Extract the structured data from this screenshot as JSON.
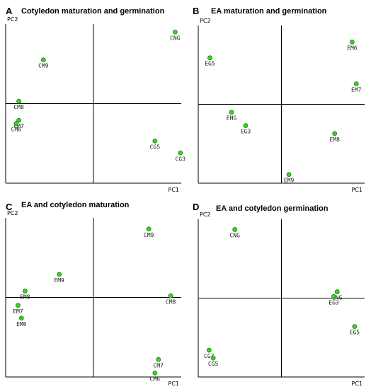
{
  "colors": {
    "point_fill": "#3fcf2a",
    "point_stroke": "#1e7d12"
  },
  "chart_data": [
    {
      "type": "scatter",
      "letter": "A",
      "title": "Cotyledon maturation and germination",
      "xlabel": "PC1",
      "ylabel": "PC2",
      "xlim": [
        -1,
        1
      ],
      "ylim": [
        -1,
        1
      ],
      "grid": false,
      "quadrant_lines": {
        "x": 0,
        "y": 0
      },
      "points": [
        {
          "label": "CNG",
          "x": 0.93,
          "y": 0.9
        },
        {
          "label": "CM9",
          "x": -0.57,
          "y": 0.55
        },
        {
          "label": "CM8",
          "x": -0.85,
          "y": 0.03
        },
        {
          "label": "CM7",
          "x": -0.85,
          "y": -0.21
        },
        {
          "label": "CM6",
          "x": -0.88,
          "y": -0.25
        },
        {
          "label": "CG5",
          "x": 0.7,
          "y": -0.47
        },
        {
          "label": "CG3",
          "x": 0.99,
          "y": -0.62
        }
      ]
    },
    {
      "type": "scatter",
      "letter": "B",
      "title": "EA maturation and germination",
      "xlabel": "PC1",
      "ylabel": "PC2",
      "xlim": [
        -1,
        1
      ],
      "ylim": [
        -1,
        1
      ],
      "grid": false,
      "quadrant_lines": {
        "x": 0,
        "y": 0
      },
      "points": [
        {
          "label": "EM6",
          "x": 0.85,
          "y": 0.79
        },
        {
          "label": "EG5",
          "x": -0.86,
          "y": 0.59
        },
        {
          "label": "EM7",
          "x": 0.9,
          "y": 0.26
        },
        {
          "label": "ENG",
          "x": -0.6,
          "y": -0.1
        },
        {
          "label": "EG3",
          "x": -0.43,
          "y": -0.27
        },
        {
          "label": "EM8",
          "x": 0.64,
          "y": -0.37
        },
        {
          "label": "EM9",
          "x": 0.09,
          "y": -0.89
        }
      ]
    },
    {
      "type": "scatter",
      "letter": "C",
      "title": "EA and cotyledon maturation",
      "xlabel": "PC1",
      "ylabel": "PC2",
      "xlim": [
        -1,
        1
      ],
      "ylim": [
        -1,
        1
      ],
      "grid": false,
      "quadrant_lines": {
        "x": 0,
        "y": 0
      },
      "points": [
        {
          "label": "CM9",
          "x": 0.63,
          "y": 0.86
        },
        {
          "label": "EM9",
          "x": -0.39,
          "y": 0.29
        },
        {
          "label": "EM8",
          "x": -0.78,
          "y": 0.08
        },
        {
          "label": "CM8",
          "x": 0.88,
          "y": 0.02
        },
        {
          "label": "EM7",
          "x": -0.86,
          "y": -0.1
        },
        {
          "label": "EM6",
          "x": -0.82,
          "y": -0.26
        },
        {
          "label": "CM7",
          "x": 0.74,
          "y": -0.78
        },
        {
          "label": "CM6",
          "x": 0.7,
          "y": -0.95
        }
      ]
    },
    {
      "type": "scatter",
      "letter": "D",
      "title": "EA and cotyledon germination",
      "xlabel": "PC1",
      "ylabel": "PC2",
      "xlim": [
        -1,
        1
      ],
      "ylim": [
        -1,
        1
      ],
      "grid": false,
      "quadrant_lines": {
        "x": 0,
        "y": 0
      },
      "points": [
        {
          "label": "CNG",
          "x": -0.56,
          "y": 0.87
        },
        {
          "label": "ENG",
          "x": 0.67,
          "y": 0.08
        },
        {
          "label": "EG3",
          "x": 0.63,
          "y": 0.02
        },
        {
          "label": "EG5",
          "x": 0.88,
          "y": -0.36
        },
        {
          "label": "CG3",
          "x": -0.87,
          "y": -0.66
        },
        {
          "label": "CG5",
          "x": -0.82,
          "y": -0.76
        }
      ]
    }
  ]
}
